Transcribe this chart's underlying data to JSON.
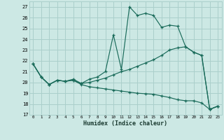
{
  "xlabel": "Humidex (Indice chaleur)",
  "bg_color": "#cce8e4",
  "grid_color": "#aacfcb",
  "line_color": "#1a6b5a",
  "xlim": [
    -0.5,
    23.5
  ],
  "ylim": [
    17,
    27.5
  ],
  "yticks": [
    17,
    18,
    19,
    20,
    21,
    22,
    23,
    24,
    25,
    26,
    27
  ],
  "xticks": [
    0,
    1,
    2,
    3,
    4,
    5,
    6,
    7,
    8,
    9,
    10,
    11,
    12,
    13,
    14,
    15,
    16,
    17,
    18,
    19,
    20,
    21,
    22,
    23
  ],
  "series1": [
    [
      0,
      21.7
    ],
    [
      1,
      20.5
    ],
    [
      2,
      19.8
    ],
    [
      3,
      20.2
    ],
    [
      4,
      20.1
    ],
    [
      5,
      20.3
    ],
    [
      6,
      19.9
    ],
    [
      7,
      20.3
    ],
    [
      8,
      20.5
    ],
    [
      9,
      21.0
    ],
    [
      10,
      24.4
    ],
    [
      11,
      21.2
    ],
    [
      12,
      27.0
    ],
    [
      13,
      26.2
    ],
    [
      14,
      26.4
    ],
    [
      15,
      26.2
    ],
    [
      16,
      25.1
    ],
    [
      17,
      25.3
    ],
    [
      18,
      25.2
    ],
    [
      19,
      23.3
    ],
    [
      20,
      22.8
    ],
    [
      21,
      22.5
    ],
    [
      22,
      17.5
    ],
    [
      23,
      17.8
    ]
  ],
  "series2": [
    [
      0,
      21.7
    ],
    [
      1,
      20.5
    ],
    [
      2,
      19.8
    ],
    [
      3,
      20.2
    ],
    [
      4,
      20.1
    ],
    [
      5,
      20.2
    ],
    [
      6,
      19.9
    ],
    [
      7,
      20.0
    ],
    [
      8,
      20.2
    ],
    [
      9,
      20.4
    ],
    [
      10,
      20.7
    ],
    [
      11,
      21.0
    ],
    [
      12,
      21.2
    ],
    [
      13,
      21.5
    ],
    [
      14,
      21.8
    ],
    [
      15,
      22.1
    ],
    [
      16,
      22.5
    ],
    [
      17,
      23.0
    ],
    [
      18,
      23.2
    ],
    [
      19,
      23.3
    ],
    [
      20,
      22.8
    ],
    [
      21,
      22.5
    ],
    [
      22,
      17.5
    ],
    [
      23,
      17.8
    ]
  ],
  "series3": [
    [
      0,
      21.7
    ],
    [
      1,
      20.5
    ],
    [
      2,
      19.8
    ],
    [
      3,
      20.2
    ],
    [
      4,
      20.1
    ],
    [
      5,
      20.2
    ],
    [
      6,
      19.8
    ],
    [
      7,
      19.6
    ],
    [
      8,
      19.5
    ],
    [
      9,
      19.4
    ],
    [
      10,
      19.3
    ],
    [
      11,
      19.2
    ],
    [
      12,
      19.1
    ],
    [
      13,
      19.0
    ],
    [
      14,
      18.95
    ],
    [
      15,
      18.9
    ],
    [
      16,
      18.75
    ],
    [
      17,
      18.6
    ],
    [
      18,
      18.4
    ],
    [
      19,
      18.3
    ],
    [
      20,
      18.3
    ],
    [
      21,
      18.1
    ],
    [
      22,
      17.5
    ],
    [
      23,
      17.8
    ]
  ]
}
